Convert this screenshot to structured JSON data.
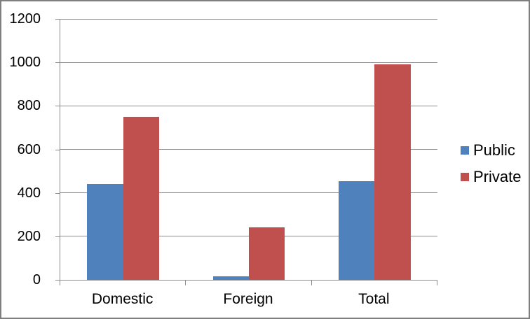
{
  "chart_data": {
    "type": "bar",
    "title": "",
    "categories": [
      "Domestic",
      "Foreign",
      "Total"
    ],
    "series": [
      {
        "name": "Public",
        "color": "#4F81BD",
        "values": [
          440,
          15,
          455
        ]
      },
      {
        "name": "Private",
        "color": "#C0504D",
        "values": [
          750,
          240,
          990
        ]
      }
    ],
    "ylim": [
      0,
      1200
    ],
    "yticks": [
      0,
      200,
      400,
      600,
      800,
      1000,
      1200
    ],
    "xlabel": "",
    "ylabel": "",
    "grid": true,
    "legend_position": "right",
    "bar_gap_ratio": 1.5
  },
  "colors": {
    "gridline": "#8C8C8C",
    "axis": "#8C8C8C",
    "text": "#000000",
    "frame_border": "#7F7F7F",
    "background": "#FFFFFF"
  }
}
